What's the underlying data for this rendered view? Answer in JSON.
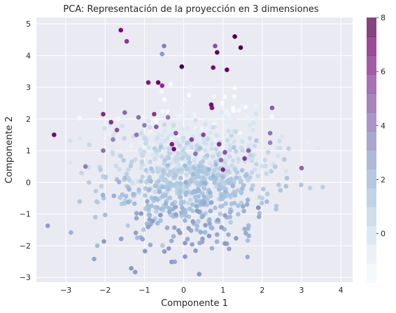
{
  "chart_data": {
    "type": "scatter",
    "title": "PCA: Representación de la proyección en 3 dimensiones",
    "xlabel": "Componente 1",
    "ylabel": "Componente 2",
    "xlim": [
      -3.75,
      4.3
    ],
    "ylim": [
      -3.15,
      5.2
    ],
    "xticks": [
      -3,
      -2,
      -1,
      0,
      1,
      2,
      3,
      4
    ],
    "yticks": [
      -3,
      -2,
      -1,
      0,
      1,
      2,
      3,
      4,
      5
    ],
    "grid": true,
    "colormap": "BuPu",
    "colorbar": {
      "vmin": -1.8,
      "vmax": 8,
      "ticks": [
        0,
        2,
        4,
        6,
        8
      ],
      "levels": 14
    },
    "background": "#eaeaf2",
    "highlighted_points": [
      {
        "x": -1.6,
        "y": 4.8,
        "c": 7.0
      },
      {
        "x": -1.45,
        "y": 4.45,
        "c": 5.8
      },
      {
        "x": 1.3,
        "y": 4.6,
        "c": 8.0
      },
      {
        "x": 1.45,
        "y": 4.25,
        "c": 8.0
      },
      {
        "x": 0.8,
        "y": 4.3,
        "c": 5.2
      },
      {
        "x": 0.85,
        "y": 4.1,
        "c": 7.5
      },
      {
        "x": -0.5,
        "y": 4.3,
        "c": 3.8
      },
      {
        "x": -0.55,
        "y": 4.05,
        "c": 3.0
      },
      {
        "x": -0.05,
        "y": 3.65,
        "c": 8.0
      },
      {
        "x": 0.75,
        "y": 3.62,
        "c": 7.0
      },
      {
        "x": 1.1,
        "y": 3.55,
        "c": 7.5
      },
      {
        "x": -0.9,
        "y": 3.15,
        "c": 6.5
      },
      {
        "x": -0.65,
        "y": 3.15,
        "c": 7.5
      },
      {
        "x": -0.55,
        "y": 3.05,
        "c": 6.0
      },
      {
        "x": 0.7,
        "y": 2.45,
        "c": 7.0
      },
      {
        "x": 0.72,
        "y": 2.35,
        "c": 6.5
      },
      {
        "x": -3.3,
        "y": 1.5,
        "c": 7.0
      },
      {
        "x": -2.05,
        "y": 2.15,
        "c": 6.2
      },
      {
        "x": -1.85,
        "y": 1.9,
        "c": 6.0
      },
      {
        "x": -1.7,
        "y": 1.65,
        "c": 5.2
      },
      {
        "x": -1.5,
        "y": 2.2,
        "c": 4.5
      },
      {
        "x": -1.15,
        "y": 2.05,
        "c": 4.2
      },
      {
        "x": -0.75,
        "y": 2.15,
        "c": 5.8
      },
      {
        "x": -0.7,
        "y": 1.75,
        "c": 4.8
      },
      {
        "x": -0.4,
        "y": 2.05,
        "c": 4.0
      },
      {
        "x": -0.2,
        "y": 1.55,
        "c": 5.0
      },
      {
        "x": 0.2,
        "y": 1.35,
        "c": 5.5
      },
      {
        "x": -0.3,
        "y": 1.2,
        "c": 6.5
      },
      {
        "x": -0.25,
        "y": 1.05,
        "c": 7.0
      },
      {
        "x": 0.5,
        "y": 1.5,
        "c": 5.5
      },
      {
        "x": 0.9,
        "y": 1.2,
        "c": 6.0
      },
      {
        "x": 1.05,
        "y": 0.95,
        "c": 5.0
      },
      {
        "x": 0.95,
        "y": 0.7,
        "c": 4.2
      },
      {
        "x": 1.55,
        "y": 0.75,
        "c": 5.8
      },
      {
        "x": 1.65,
        "y": 1.0,
        "c": 4.5
      },
      {
        "x": 1.0,
        "y": 0.4,
        "c": 6.2
      },
      {
        "x": 2.25,
        "y": 2.35,
        "c": 4.8
      },
      {
        "x": 2.2,
        "y": 1.55,
        "c": 4.0
      },
      {
        "x": 2.2,
        "y": 1.25,
        "c": 3.5
      },
      {
        "x": 3.0,
        "y": 0.45,
        "c": 4.5
      },
      {
        "x": -2.05,
        "y": 1.0,
        "c": 4.2
      },
      {
        "x": -1.8,
        "y": 1.35,
        "c": 3.5
      },
      {
        "x": -2.5,
        "y": 0.5,
        "c": 3.8
      },
      {
        "x": -1.2,
        "y": 1.5,
        "c": 4.0
      },
      {
        "x": -1.0,
        "y": 1.8,
        "c": 3.8
      },
      {
        "x": 1.9,
        "y": -0.8,
        "c": 3.5
      },
      {
        "x": 0.3,
        "y": 0.9,
        "c": 4.0
      }
    ]
  }
}
